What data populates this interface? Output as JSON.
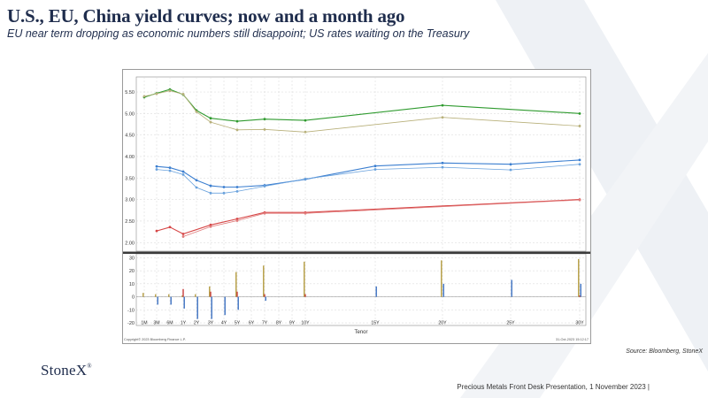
{
  "slide": {
    "title": "U.S., EU, China yield curves; now and a month ago",
    "subtitle": "EU near term dropping as economic numbers still disappoint; US rates waiting on the Treasury",
    "source": "Source: Bloomberg, StoneX",
    "logo_text": "StoneX",
    "logo_mark": "®",
    "footer": "Precious Metals Front Desk Presentation, 1 November 2023 |"
  },
  "chart_data": {
    "type": "line",
    "x": [
      "1M",
      "3M",
      "6M",
      "1Y",
      "2Y",
      "3Y",
      "4Y",
      "5Y",
      "6Y",
      "7Y",
      "8Y",
      "9Y",
      "10Y",
      "15Y",
      "20Y",
      "25Y",
      "30Y"
    ],
    "x_years": [
      0.0833,
      0.25,
      0.5,
      1,
      2,
      3,
      4,
      5,
      6,
      7,
      8,
      9,
      10,
      15,
      20,
      25,
      30
    ],
    "xlabel": "Tenor",
    "ylim": [
      1.8,
      5.85
    ],
    "yticks": [
      2.0,
      2.5,
      3.0,
      3.5,
      4.0,
      4.5,
      5.0,
      5.5
    ],
    "colors": {
      "us_now": "#2e9a2e",
      "us_ago": "#b8b07a",
      "eu_now": "#3c7fd0",
      "eu_ago": "#6aa2dd",
      "cn_now": "#d64545",
      "cn_ago": "#e07b7b",
      "bar_us": "#b39a3c",
      "bar_eu": "#3a6fc0",
      "bar_cn": "#c83c3c"
    },
    "series": [
      {
        "key": "us_now",
        "x": [
          "1M",
          "3M",
          "6M",
          "1Y",
          "2Y",
          "3Y",
          "5Y",
          "7Y",
          "10Y",
          "20Y",
          "30Y"
        ],
        "values": [
          5.38,
          5.47,
          5.56,
          5.44,
          5.07,
          4.89,
          4.82,
          4.87,
          4.84,
          5.19,
          5.0
        ]
      },
      {
        "key": "us_ago",
        "x": [
          "1M",
          "3M",
          "6M",
          "1Y",
          "2Y",
          "3Y",
          "5Y",
          "7Y",
          "10Y",
          "20Y",
          "30Y"
        ],
        "values": [
          5.4,
          5.46,
          5.53,
          5.45,
          5.04,
          4.8,
          4.62,
          4.63,
          4.57,
          4.91,
          4.71
        ]
      },
      {
        "key": "eu_now",
        "x": [
          "3M",
          "6M",
          "1Y",
          "2Y",
          "3Y",
          "4Y",
          "5Y",
          "7Y",
          "10Y",
          "15Y",
          "20Y",
          "25Y",
          "30Y"
        ],
        "values": [
          3.77,
          3.74,
          3.65,
          3.45,
          3.32,
          3.29,
          3.29,
          3.33,
          3.47,
          3.78,
          3.85,
          3.82,
          3.92
        ]
      },
      {
        "key": "eu_ago",
        "x": [
          "3M",
          "6M",
          "1Y",
          "2Y",
          "3Y",
          "4Y",
          "5Y",
          "7Y",
          "10Y",
          "15Y",
          "20Y",
          "25Y",
          "30Y"
        ],
        "values": [
          3.7,
          3.67,
          3.58,
          3.28,
          3.15,
          3.15,
          3.19,
          3.31,
          3.48,
          3.7,
          3.75,
          3.69,
          3.82
        ]
      },
      {
        "key": "cn_now",
        "x": [
          "3M",
          "6M",
          "1Y",
          "3Y",
          "5Y",
          "7Y",
          "10Y",
          "30Y"
        ],
        "values": [
          2.27,
          2.36,
          2.2,
          2.41,
          2.55,
          2.7,
          2.7,
          3.0
        ]
      },
      {
        "key": "cn_ago",
        "x": [
          "1Y",
          "3Y",
          "5Y",
          "7Y",
          "10Y",
          "30Y"
        ],
        "values": [
          2.14,
          2.37,
          2.51,
          2.68,
          2.68,
          2.99
        ]
      }
    ],
    "change_bars": {
      "ylim": [
        -22,
        33
      ],
      "yticks": [
        -20,
        -10,
        0,
        10,
        20,
        30
      ],
      "us": {
        "x": [
          "1M",
          "3M",
          "6M",
          "1Y",
          "2Y",
          "3Y",
          "5Y",
          "7Y",
          "10Y",
          "20Y",
          "30Y"
        ],
        "values": [
          3,
          2,
          2,
          1,
          2,
          8,
          19,
          24,
          27,
          28,
          29
        ]
      },
      "eu": {
        "x": [
          "3M",
          "6M",
          "1Y",
          "2Y",
          "3Y",
          "4Y",
          "5Y",
          "7Y",
          "15Y",
          "20Y",
          "25Y",
          "30Y"
        ],
        "values": [
          -6,
          -6,
          -9,
          -17,
          -17,
          -14,
          -10,
          -3,
          8,
          10,
          13,
          10
        ]
      },
      "cn": {
        "x": [
          "1Y",
          "3Y",
          "5Y",
          "7Y",
          "10Y",
          "30Y"
        ],
        "values": [
          6,
          4,
          4,
          2,
          2,
          1
        ]
      }
    },
    "footer_left": "Copyright© 2023 Bloomberg Finance L.P.",
    "footer_right": "31-Oct-2023 15:12:17"
  }
}
